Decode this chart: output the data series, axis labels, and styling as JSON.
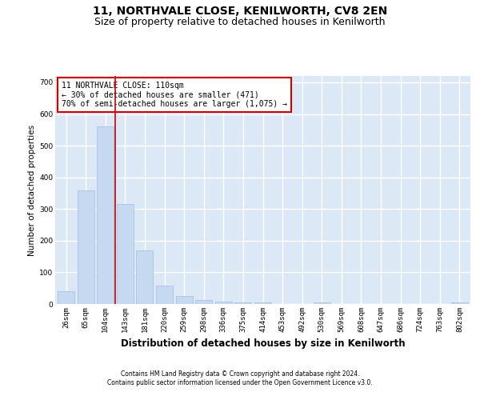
{
  "title": "11, NORTHVALE CLOSE, KENILWORTH, CV8 2EN",
  "subtitle": "Size of property relative to detached houses in Kenilworth",
  "xlabel": "Distribution of detached houses by size in Kenilworth",
  "ylabel": "Number of detached properties",
  "footer1": "Contains HM Land Registry data © Crown copyright and database right 2024.",
  "footer2": "Contains public sector information licensed under the Open Government Licence v3.0.",
  "bar_labels": [
    "26sqm",
    "65sqm",
    "104sqm",
    "143sqm",
    "181sqm",
    "220sqm",
    "259sqm",
    "298sqm",
    "336sqm",
    "375sqm",
    "414sqm",
    "453sqm",
    "492sqm",
    "530sqm",
    "569sqm",
    "608sqm",
    "647sqm",
    "686sqm",
    "724sqm",
    "763sqm",
    "802sqm"
  ],
  "bar_values": [
    40,
    360,
    560,
    315,
    170,
    58,
    25,
    12,
    7,
    5,
    5,
    0,
    0,
    6,
    0,
    0,
    0,
    0,
    0,
    0,
    5
  ],
  "bar_color": "#c6d9f1",
  "bar_edge_color": "#a8c4e0",
  "vline_x": 2.5,
  "vline_color": "#cc0000",
  "annotation_text": "11 NORTHVALE CLOSE: 110sqm\n← 30% of detached houses are smaller (471)\n70% of semi-detached houses are larger (1,075) →",
  "ylim": [
    0,
    720
  ],
  "yticks": [
    0,
    100,
    200,
    300,
    400,
    500,
    600,
    700
  ],
  "plot_bg": "#dde8f6",
  "grid_color": "#ffffff",
  "title_fontsize": 10,
  "subtitle_fontsize": 9,
  "xlabel_fontsize": 8.5,
  "ylabel_fontsize": 7.5,
  "tick_fontsize": 6.5,
  "annotation_fontsize": 7,
  "footer_fontsize": 5.5
}
